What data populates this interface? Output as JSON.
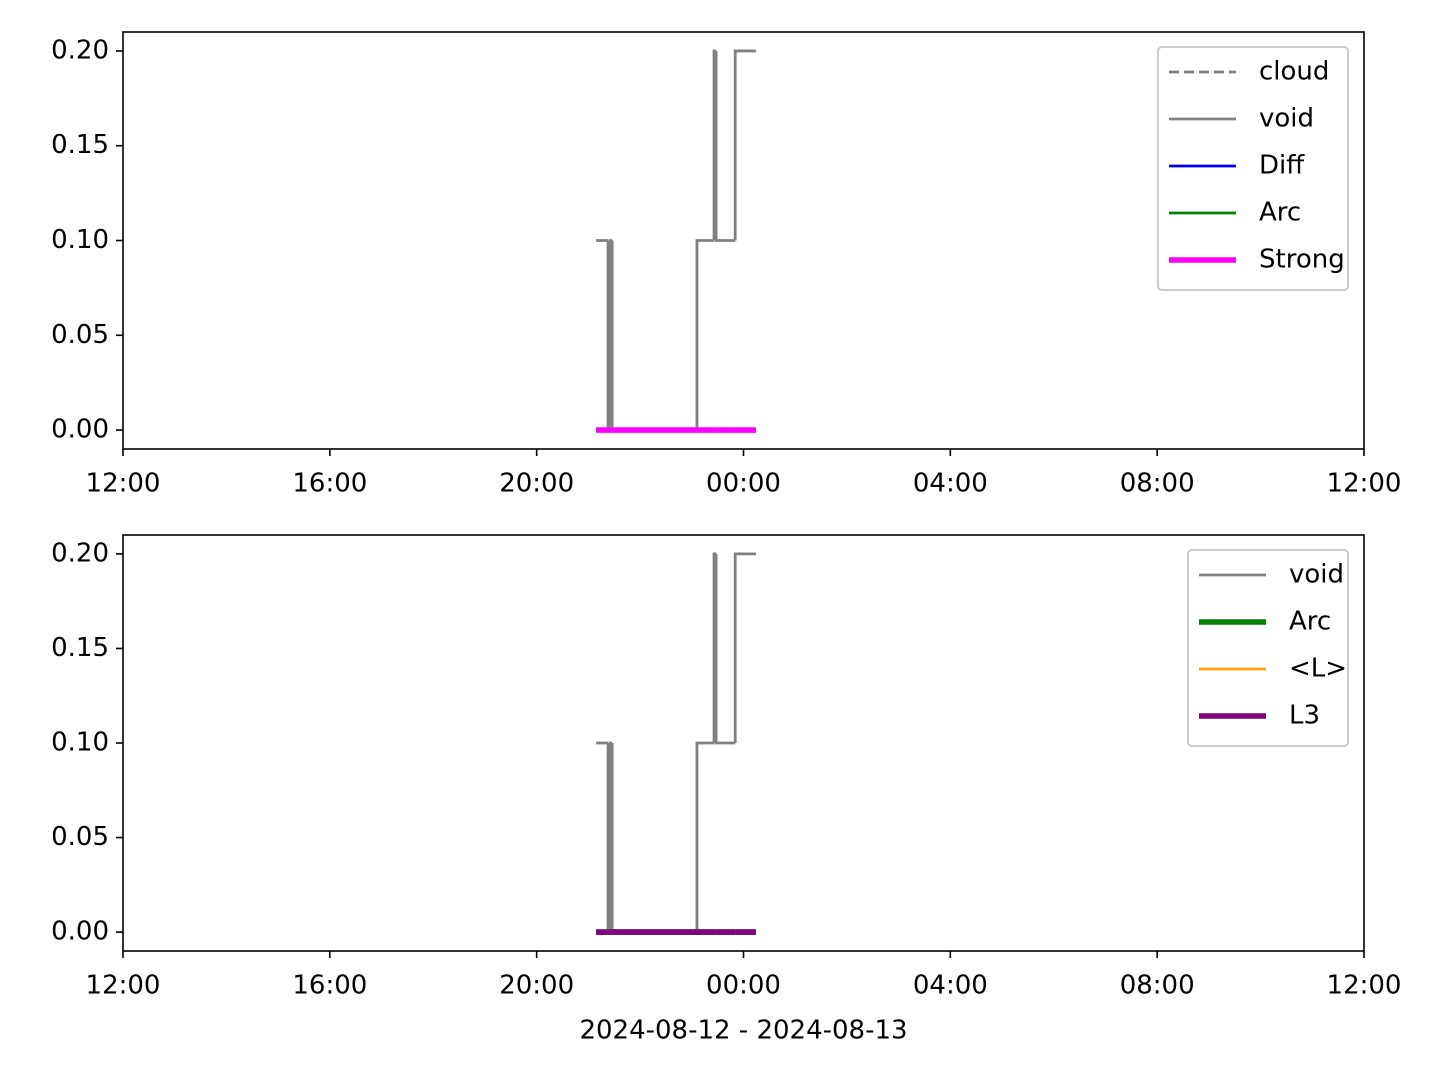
{
  "chart_data": [
    {
      "type": "line",
      "drawstyle": "steps-post",
      "x": [
        21.15,
        21.38,
        21.42,
        21.46,
        23.1,
        23.43,
        23.47,
        23.84,
        24.24
      ],
      "series": [
        {
          "name": "cloud",
          "color": "#808080",
          "linestyle": "dashed",
          "linewidth": 1,
          "values": [
            0,
            0,
            0,
            0,
            0,
            0,
            0,
            0,
            0
          ]
        },
        {
          "name": "void",
          "color": "#808080",
          "linestyle": "solid",
          "linewidth": 1,
          "values": [
            0.1,
            0,
            0.1,
            0,
            0.1,
            0.2,
            0.1,
            0.2,
            0.2
          ]
        },
        {
          "name": "Diff",
          "color": "#0000ff",
          "linestyle": "solid",
          "linewidth": 1,
          "values": [
            0,
            0,
            0,
            0,
            0,
            0,
            0,
            0,
            0
          ]
        },
        {
          "name": "Arc",
          "color": "#008000",
          "linestyle": "solid",
          "linewidth": 1,
          "values": [
            0,
            0,
            0,
            0,
            0,
            0,
            0,
            0,
            0
          ]
        },
        {
          "name": "Strong",
          "color": "#ff00ff",
          "linestyle": "solid",
          "linewidth": 2,
          "values": [
            0,
            0,
            0,
            0,
            0,
            0,
            0,
            0,
            0
          ]
        }
      ],
      "xlim": [
        12,
        36
      ],
      "xticks": [
        {
          "value": 12,
          "label": "12:00"
        },
        {
          "value": 16,
          "label": "16:00"
        },
        {
          "value": 20,
          "label": "20:00"
        },
        {
          "value": 24,
          "label": "00:00"
        },
        {
          "value": 28,
          "label": "04:00"
        },
        {
          "value": 32,
          "label": "08:00"
        },
        {
          "value": 36,
          "label": "12:00"
        }
      ],
      "ylim": [
        -0.01,
        0.21
      ],
      "yticks": [
        {
          "value": 0,
          "label": "0.00"
        },
        {
          "value": 0.05,
          "label": "0.05"
        },
        {
          "value": 0.1,
          "label": "0.10"
        },
        {
          "value": 0.15,
          "label": "0.15"
        },
        {
          "value": 0.2,
          "label": "0.20"
        }
      ],
      "legend": "upper right"
    },
    {
      "type": "line",
      "drawstyle": "steps-post",
      "x": [
        21.15,
        21.38,
        21.42,
        21.46,
        23.1,
        23.43,
        23.47,
        23.84,
        24.24
      ],
      "series": [
        {
          "name": "void",
          "color": "#808080",
          "linestyle": "solid",
          "linewidth": 1,
          "values": [
            0.1,
            0,
            0.1,
            0,
            0.1,
            0.2,
            0.1,
            0.2,
            0.2
          ]
        },
        {
          "name": "Arc",
          "color": "#008000",
          "linestyle": "solid",
          "linewidth": 2,
          "values": [
            0,
            0,
            0,
            0,
            0,
            0,
            0,
            0,
            0
          ]
        },
        {
          "name": "<L>",
          "color": "#ffa500",
          "linestyle": "solid",
          "linewidth": 1,
          "values": [
            0,
            0,
            0,
            0,
            0,
            0,
            0,
            0,
            0
          ]
        },
        {
          "name": "L3",
          "color": "#800080",
          "linestyle": "solid",
          "linewidth": 2,
          "values": [
            0,
            0,
            0,
            0,
            0,
            0,
            0,
            0,
            0
          ]
        }
      ],
      "xlim": [
        12,
        36
      ],
      "xticks": [
        {
          "value": 12,
          "label": "12:00"
        },
        {
          "value": 16,
          "label": "16:00"
        },
        {
          "value": 20,
          "label": "20:00"
        },
        {
          "value": 24,
          "label": "00:00"
        },
        {
          "value": 28,
          "label": "04:00"
        },
        {
          "value": 32,
          "label": "08:00"
        },
        {
          "value": 36,
          "label": "12:00"
        }
      ],
      "ylim": [
        -0.01,
        0.21
      ],
      "yticks": [
        {
          "value": 0,
          "label": "0.00"
        },
        {
          "value": 0.05,
          "label": "0.05"
        },
        {
          "value": 0.1,
          "label": "0.10"
        },
        {
          "value": 0.15,
          "label": "0.15"
        },
        {
          "value": 0.2,
          "label": "0.20"
        }
      ],
      "xlabel": "2024-08-12 - 2024-08-13",
      "legend": "upper right"
    }
  ]
}
